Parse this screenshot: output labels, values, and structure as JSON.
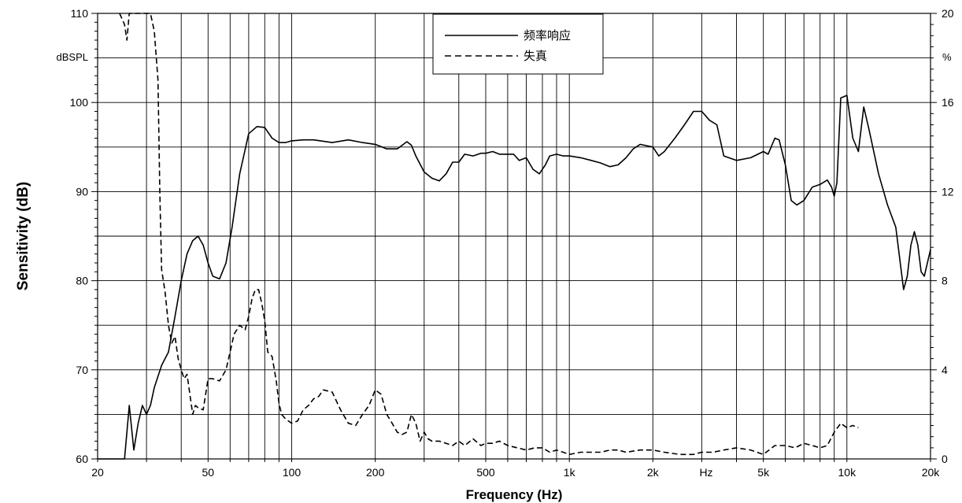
{
  "chart_data": {
    "type": "line",
    "xscale": "log",
    "xlim": [
      20,
      20000
    ],
    "ylim": [
      60,
      110
    ],
    "y2lim": [
      0,
      20
    ],
    "grid": true,
    "legend_position": "top-center",
    "xlabel": "Frequency (Hz)",
    "ylabel": "Sensitivity (dB)",
    "y_unit": "dBSPL",
    "y2_unit": "%",
    "x_unit_tick": "Hz",
    "x_ticks": [
      {
        "value": 20,
        "label": "20"
      },
      {
        "value": 50,
        "label": "50"
      },
      {
        "value": 100,
        "label": "100"
      },
      {
        "value": 200,
        "label": "200"
      },
      {
        "value": 500,
        "label": "500"
      },
      {
        "value": 1000,
        "label": "1k"
      },
      {
        "value": 2000,
        "label": "2k"
      },
      {
        "value": 5000,
        "label": "5k"
      },
      {
        "value": 10000,
        "label": "10k"
      },
      {
        "value": 20000,
        "label": "20k"
      }
    ],
    "y_ticks": [
      60,
      70,
      80,
      90,
      100,
      110
    ],
    "y2_ticks": [
      0,
      4,
      8,
      12,
      16,
      20
    ],
    "series": [
      {
        "name": "频率响应",
        "axis": "left",
        "style": "solid",
        "x": [
          20,
          25,
          26,
          27,
          28,
          29,
          30,
          31,
          32,
          34,
          36,
          38,
          40,
          42,
          44,
          46,
          48,
          50,
          52,
          55,
          58,
          61,
          65,
          70,
          75,
          80,
          85,
          90,
          95,
          100,
          110,
          120,
          140,
          160,
          180,
          200,
          220,
          240,
          260,
          270,
          280,
          300,
          320,
          340,
          360,
          380,
          400,
          420,
          450,
          480,
          500,
          530,
          560,
          600,
          630,
          660,
          700,
          740,
          780,
          820,
          850,
          900,
          950,
          1000,
          1100,
          1200,
          1300,
          1400,
          1500,
          1600,
          1700,
          1800,
          2000,
          2100,
          2200,
          2400,
          2600,
          2800,
          3000,
          3200,
          3400,
          3600,
          4000,
          4500,
          5000,
          5200,
          5500,
          5700,
          6000,
          6300,
          6600,
          7000,
          7500,
          8000,
          8500,
          8800,
          9000,
          9200,
          9500,
          10000,
          10500,
          11000,
          11500,
          12000,
          13000,
          14000,
          15000,
          16000,
          16500,
          17000,
          17500,
          18000,
          18500,
          19000,
          20000
        ],
        "y": [
          60,
          60,
          66,
          61,
          64,
          66,
          65,
          66,
          68,
          70.5,
          72,
          76,
          80,
          83,
          84.5,
          85,
          84,
          82,
          80.5,
          80.2,
          82,
          86,
          92,
          96.5,
          97.3,
          97.2,
          96,
          95.5,
          95.5,
          95.7,
          95.8,
          95.8,
          95.5,
          95.8,
          95.5,
          95.3,
          94.8,
          94.8,
          95.6,
          95.2,
          94,
          92.2,
          91.5,
          91.2,
          92,
          93.3,
          93.3,
          94.2,
          94,
          94.3,
          94.3,
          94.5,
          94.2,
          94.2,
          94.2,
          93.5,
          93.8,
          92.5,
          92,
          93,
          94,
          94.2,
          94,
          94,
          93.8,
          93.5,
          93.2,
          92.8,
          93,
          93.8,
          94.8,
          95.3,
          95,
          94,
          94.5,
          96,
          97.5,
          99,
          99,
          98,
          97.5,
          94,
          93.5,
          93.8,
          94.5,
          94.2,
          96,
          95.8,
          93,
          89,
          88.5,
          89,
          90.5,
          90.8,
          91.3,
          90.5,
          89.5,
          91,
          100.5,
          100.8,
          96,
          94.5,
          99.5,
          97,
          92,
          88.5,
          86,
          79,
          80.5,
          84,
          85.5,
          84,
          81,
          80.5,
          83.5
        ]
      },
      {
        "name": "失真",
        "axis": "right",
        "style": "dashed",
        "x": [
          24,
          25,
          25.5,
          26,
          28,
          30,
          31,
          32,
          33,
          33.5,
          34,
          35,
          36,
          37,
          38,
          39,
          40,
          41,
          42,
          44,
          45,
          46,
          48,
          50,
          52,
          55,
          58,
          60,
          62,
          65,
          68,
          70,
          72,
          74,
          76,
          78,
          80,
          82,
          85,
          88,
          90,
          92,
          95,
          100,
          105,
          110,
          115,
          120,
          125,
          130,
          140,
          150,
          160,
          170,
          180,
          190,
          200,
          210,
          220,
          230,
          240,
          250,
          260,
          270,
          280,
          290,
          300,
          310,
          320,
          340,
          360,
          380,
          400,
          420,
          450,
          480,
          500,
          530,
          560,
          600,
          650,
          700,
          750,
          800,
          850,
          900,
          950,
          1000,
          1100,
          1200,
          1300,
          1400,
          1500,
          1600,
          1800,
          2000,
          2200,
          2500,
          2800,
          3000,
          3300,
          3600,
          4000,
          4500,
          5000,
          5500,
          6000,
          6500,
          7000,
          7500,
          8000,
          8500,
          9000,
          9500,
          10000,
          10500,
          11000
        ],
        "y": [
          20,
          19.5,
          18.8,
          20,
          20,
          20,
          20,
          19.2,
          17,
          12,
          8.5,
          7.5,
          6,
          5.2,
          5.5,
          4.5,
          4,
          3.6,
          3.8,
          2,
          2.4,
          2.3,
          2.2,
          3.6,
          3.6,
          3.5,
          4,
          4.8,
          5.6,
          6,
          5.8,
          6.4,
          7.2,
          7.6,
          7.6,
          7,
          6.2,
          4.8,
          4.6,
          3.5,
          2.5,
          2,
          1.8,
          1.6,
          1.7,
          2.2,
          2.4,
          2.7,
          2.8,
          3.1,
          3,
          2.2,
          1.6,
          1.5,
          2,
          2.4,
          3.1,
          2.9,
          2,
          1.6,
          1.2,
          1.1,
          1.2,
          2,
          1.6,
          0.8,
          1.2,
          0.9,
          0.8,
          0.8,
          0.7,
          0.6,
          0.8,
          0.6,
          0.9,
          0.6,
          0.7,
          0.7,
          0.8,
          0.6,
          0.5,
          0.4,
          0.5,
          0.5,
          0.3,
          0.4,
          0.3,
          0.2,
          0.3,
          0.3,
          0.3,
          0.4,
          0.4,
          0.3,
          0.4,
          0.4,
          0.3,
          0.2,
          0.2,
          0.3,
          0.3,
          0.4,
          0.5,
          0.4,
          0.2,
          0.6,
          0.6,
          0.5,
          0.7,
          0.6,
          0.5,
          0.6,
          1.2,
          1.6,
          1.4,
          1.5,
          1.4
        ]
      }
    ]
  }
}
